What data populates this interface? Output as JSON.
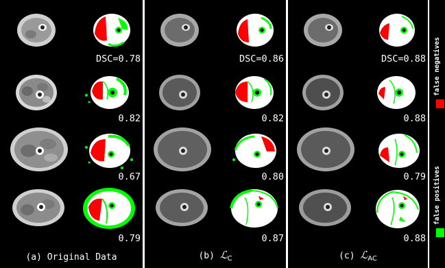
{
  "panels": [
    {
      "caption_text": "(a) Original Data",
      "caption_symbol": "",
      "caption_sub": "",
      "scores": [
        "DSC=0.78",
        "0.82",
        "0.67",
        "0.79"
      ]
    },
    {
      "caption_text": "(b)",
      "caption_symbol": "ℒ",
      "caption_sub": "C",
      "scores": [
        "DSC=0.86",
        "0.82",
        "0.80",
        "0.87"
      ]
    },
    {
      "caption_text": "(c)",
      "caption_symbol": "ℒ",
      "caption_sub": "AC",
      "scores": [
        "DSC=0.88",
        "0.88",
        "0.79",
        "0.88"
      ]
    }
  ],
  "legend": {
    "false_negatives_label": "false negatives",
    "false_positives_label": "false positives",
    "false_negatives_color": "#ff0000",
    "false_positives_color": "#00ff00"
  },
  "colors": {
    "background": "#000000",
    "segmentation": "#ffffff",
    "false_negative": "#ff0000",
    "false_positive": "#00ff00"
  }
}
